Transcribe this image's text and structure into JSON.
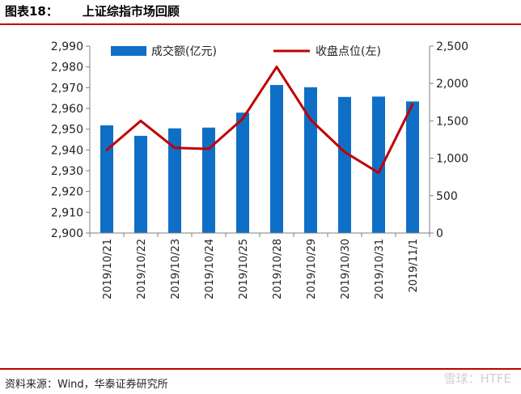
{
  "figure": {
    "label": "图表18：",
    "title": "上证综指市场回顾",
    "source": "资料来源：Wind，华泰证券研究所",
    "watermark": "雪球：HTFE"
  },
  "colors": {
    "bar": "#0f6fc6",
    "line": "#c00000",
    "rule": "#c00000"
  },
  "chart_data": {
    "type": "bar+line",
    "categories": [
      "2019/10/21",
      "2019/10/22",
      "2019/10/23",
      "2019/10/24",
      "2019/10/25",
      "2019/10/28",
      "2019/10/29",
      "2019/10/30",
      "2019/10/31",
      "2019/11/1"
    ],
    "series": [
      {
        "name": "成交额(亿元)",
        "type": "bar",
        "axis": "right",
        "values": [
          1440,
          1300,
          1400,
          1410,
          1610,
          1980,
          1950,
          1820,
          1825,
          1760
        ]
      },
      {
        "name": "收盘点位(左)",
        "type": "line",
        "axis": "left",
        "values": [
          2940,
          2954,
          2941,
          2940.5,
          2955,
          2980,
          2954.5,
          2939,
          2929,
          2962
        ]
      }
    ],
    "left_axis": {
      "ylim": [
        2900,
        2990
      ],
      "ticks": [
        2900,
        2910,
        2920,
        2930,
        2940,
        2950,
        2960,
        2970,
        2980,
        2990
      ],
      "tick_labels": [
        "2,900",
        "2,910",
        "2,920",
        "2,930",
        "2,940",
        "2,950",
        "2,960",
        "2,970",
        "2,980",
        "2,990"
      ]
    },
    "right_axis": {
      "ylim": [
        0,
        2500
      ],
      "ticks": [
        0,
        500,
        1000,
        1500,
        2000,
        2500
      ],
      "tick_labels": [
        "0",
        "500",
        "1,000",
        "1,500",
        "2,000",
        "2,500"
      ]
    },
    "legend_position": "top",
    "grid": false
  }
}
